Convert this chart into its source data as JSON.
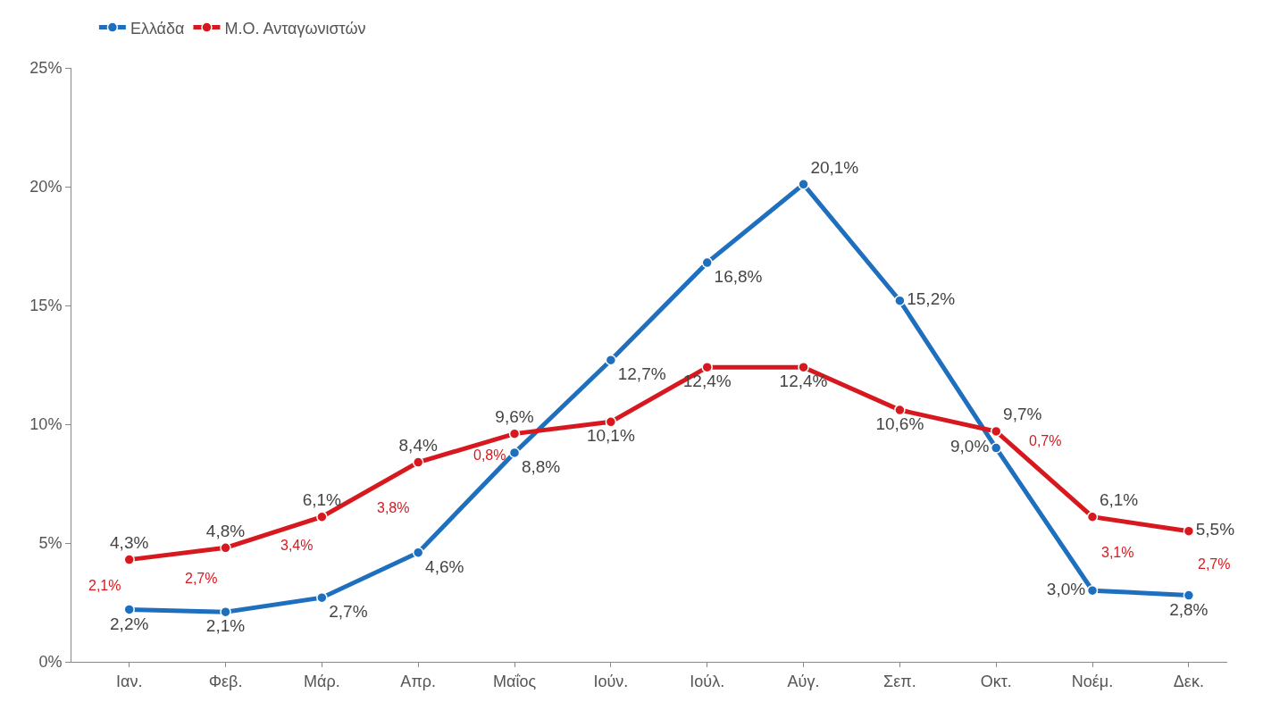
{
  "chart_data": {
    "type": "line",
    "categories": [
      "Ιαν.",
      "Φεβ.",
      "Μάρ.",
      "Απρ.",
      "Μαΐος",
      "Ιούν.",
      "Ιούλ.",
      "Αύγ.",
      "Σεπ.",
      "Οκτ.",
      "Νοέμ.",
      "Δεκ."
    ],
    "series": [
      {
        "name": "Ελλάδα",
        "color": "#1f6fbf",
        "values": [
          2.2,
          2.1,
          2.7,
          4.6,
          8.8,
          12.7,
          16.8,
          20.1,
          15.2,
          9.0,
          3.0,
          2.8
        ],
        "value_labels": [
          "2,2%",
          "2,1%",
          "2,7%",
          "4,6%",
          "8,8%",
          "12,7%",
          "16,8%",
          "20,1%",
          "15,2%",
          "9,0%",
          "3,0%",
          "2,8%"
        ]
      },
      {
        "name": "Μ.Ο. Ανταγωνιστών",
        "color": "#d7191f",
        "values": [
          4.3,
          4.8,
          6.1,
          8.4,
          9.6,
          10.1,
          12.4,
          12.4,
          10.6,
          9.7,
          6.1,
          5.5
        ],
        "value_labels": [
          "4,3%",
          "4,8%",
          "6,1%",
          "8,4%",
          "9,6%",
          "10,1%",
          "12,4%",
          "12,4%",
          "10,6%",
          "9,7%",
          "6,1%",
          "5,5%"
        ]
      }
    ],
    "annotations": [
      "2,1%",
      "2,7%",
      "3,4%",
      "3,8%",
      "0,8%",
      "0,7%",
      "3,1%",
      "2,7%"
    ],
    "ylim": [
      0,
      25
    ],
    "yticks": [
      {
        "value": 0,
        "label": "0%"
      },
      {
        "value": 5,
        "label": "5%"
      },
      {
        "value": 10,
        "label": "10%"
      },
      {
        "value": 15,
        "label": "15%"
      },
      {
        "value": 20,
        "label": "20%"
      },
      {
        "value": 25,
        "label": "25%"
      }
    ],
    "legend": "top left",
    "marker": "circle",
    "line_style": "solid"
  }
}
